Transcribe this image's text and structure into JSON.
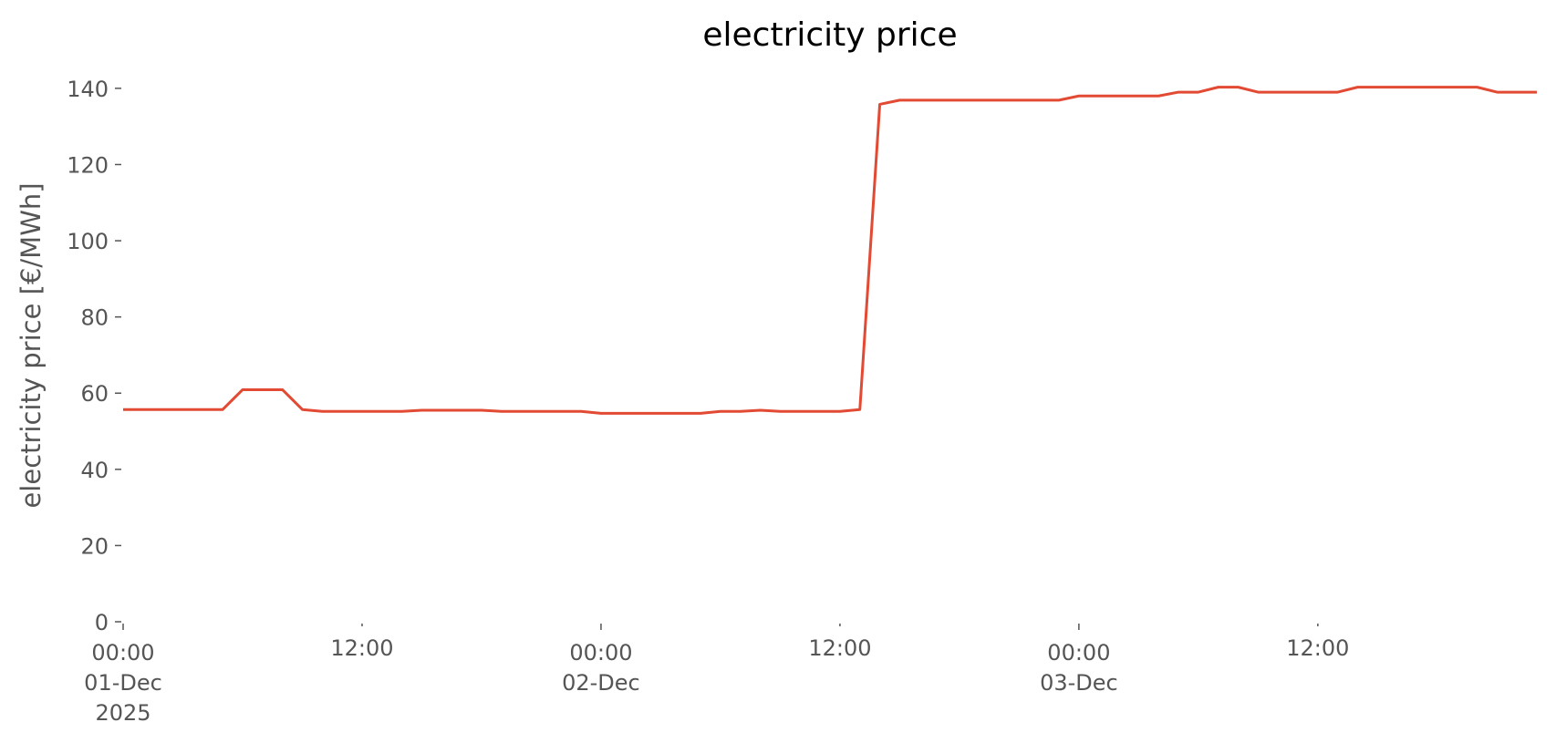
{
  "chart_data": {
    "type": "line",
    "title": "electricity price",
    "ylabel": "electricity price [€/MWh]",
    "x": [
      "2025-12-01T00:00",
      "2025-12-01T01:00",
      "2025-12-01T02:00",
      "2025-12-01T03:00",
      "2025-12-01T04:00",
      "2025-12-01T05:00",
      "2025-12-01T06:00",
      "2025-12-01T07:00",
      "2025-12-01T08:00",
      "2025-12-01T09:00",
      "2025-12-01T10:00",
      "2025-12-01T11:00",
      "2025-12-01T12:00",
      "2025-12-01T13:00",
      "2025-12-01T14:00",
      "2025-12-01T15:00",
      "2025-12-01T16:00",
      "2025-12-01T17:00",
      "2025-12-01T18:00",
      "2025-12-01T19:00",
      "2025-12-01T20:00",
      "2025-12-01T21:00",
      "2025-12-01T22:00",
      "2025-12-01T23:00",
      "2025-12-02T00:00",
      "2025-12-02T01:00",
      "2025-12-02T02:00",
      "2025-12-02T03:00",
      "2025-12-02T04:00",
      "2025-12-02T05:00",
      "2025-12-02T06:00",
      "2025-12-02T07:00",
      "2025-12-02T08:00",
      "2025-12-02T09:00",
      "2025-12-02T10:00",
      "2025-12-02T11:00",
      "2025-12-02T12:00",
      "2025-12-02T13:00",
      "2025-12-02T14:00",
      "2025-12-02T15:00",
      "2025-12-02T16:00",
      "2025-12-02T17:00",
      "2025-12-02T18:00",
      "2025-12-02T19:00",
      "2025-12-02T20:00",
      "2025-12-02T21:00",
      "2025-12-02T22:00",
      "2025-12-02T23:00",
      "2025-12-03T00:00",
      "2025-12-03T01:00",
      "2025-12-03T02:00",
      "2025-12-03T03:00",
      "2025-12-03T04:00",
      "2025-12-03T05:00",
      "2025-12-03T06:00",
      "2025-12-03T07:00",
      "2025-12-03T08:00",
      "2025-12-03T09:00",
      "2025-12-03T10:00",
      "2025-12-03T11:00",
      "2025-12-03T12:00",
      "2025-12-03T13:00",
      "2025-12-03T14:00",
      "2025-12-03T15:00",
      "2025-12-03T16:00",
      "2025-12-03T17:00",
      "2025-12-03T18:00",
      "2025-12-03T19:00",
      "2025-12-03T20:00",
      "2025-12-03T21:00",
      "2025-12-03T22:00",
      "2025-12-03T23:00"
    ],
    "series": [
      {
        "name": "electricity price",
        "color": "#e24a33",
        "values": [
          55.7,
          55.7,
          55.7,
          55.7,
          55.7,
          55.7,
          60.9,
          60.9,
          60.9,
          55.7,
          55.2,
          55.2,
          55.2,
          55.2,
          55.2,
          55.5,
          55.5,
          55.5,
          55.5,
          55.2,
          55.2,
          55.2,
          55.2,
          55.2,
          54.7,
          54.7,
          54.7,
          54.7,
          54.7,
          54.7,
          55.2,
          55.2,
          55.5,
          55.2,
          55.2,
          55.2,
          55.2,
          55.7,
          135.8,
          136.9,
          136.9,
          136.9,
          136.9,
          136.9,
          136.9,
          136.9,
          136.9,
          136.9,
          138.0,
          138.0,
          138.0,
          138.0,
          138.0,
          139.0,
          139.0,
          140.3,
          140.3,
          139.0,
          139.0,
          139.0,
          139.0,
          139.0,
          140.3,
          140.3,
          140.3,
          140.3,
          140.3,
          140.3,
          140.3,
          139.0,
          139.0,
          139.0
        ]
      }
    ],
    "xlim": [
      "2025-12-01T00:00",
      "2025-12-03T23:00"
    ],
    "xticks": [
      {
        "value": "2025-12-01T00:00",
        "label": "00:00\n01-Dec\n2025"
      },
      {
        "value": "2025-12-01T12:00",
        "label": "12:00"
      },
      {
        "value": "2025-12-02T00:00",
        "label": "00:00\n02-Dec"
      },
      {
        "value": "2025-12-02T12:00",
        "label": "12:00"
      },
      {
        "value": "2025-12-03T00:00",
        "label": "00:00\n03-Dec"
      },
      {
        "value": "2025-12-03T12:00",
        "label": "12:00"
      }
    ],
    "ylim": [
      0,
      145
    ],
    "yticks": [
      0,
      20,
      40,
      60,
      80,
      100,
      120,
      140
    ],
    "grid": false
  }
}
